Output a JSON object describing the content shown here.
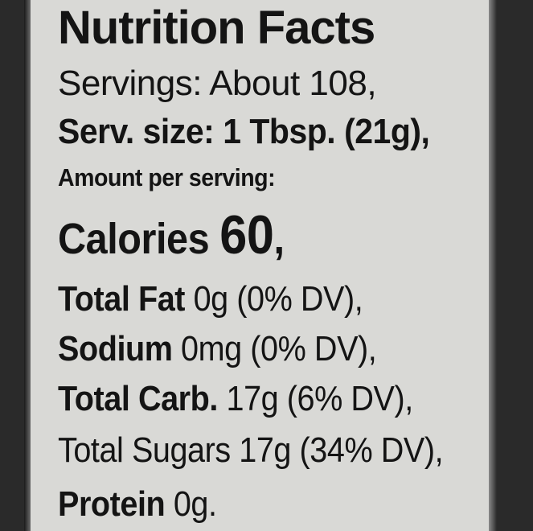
{
  "label": {
    "title": "Nutrition Facts",
    "servings": "Servings: About 108,",
    "serving_size": "Serv. size: 1 Tbsp. (21g),",
    "amount_per_serving": "Amount per serving:",
    "calories": {
      "label": "Calories",
      "value": "60",
      "suffix": ","
    },
    "nutrients": [
      {
        "name": "Total Fat",
        "amount": "0g (0% DV),",
        "bold": true
      },
      {
        "name": "Sodium",
        "amount": "0mg (0% DV),",
        "bold": true
      },
      {
        "name": "Total Carb.",
        "amount": "17g (6% DV),",
        "bold": true
      },
      {
        "name": "Total Sugars",
        "amount": "17g (34% DV),",
        "bold": false
      },
      {
        "name": "Protein",
        "amount": "0g.",
        "bold": true
      }
    ]
  },
  "colors": {
    "paper": "#d9d9d6",
    "ink": "#141414",
    "background": "#2a2a2a"
  }
}
